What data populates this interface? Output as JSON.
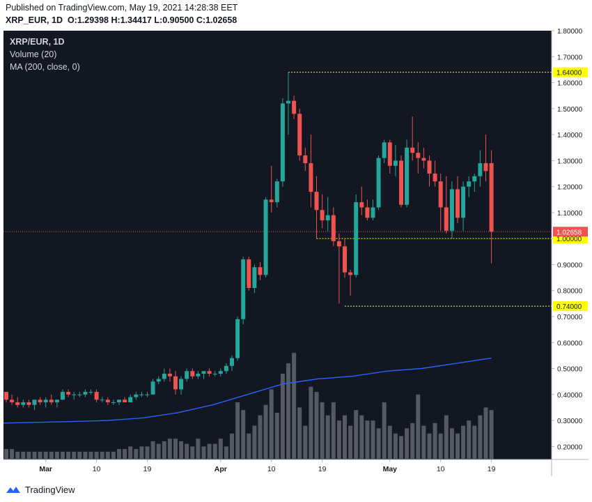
{
  "header": {
    "published": "Published on TradingView.com, May 19, 2021 14:28:38 EET",
    "symbol": "XRP_EUR, 1D",
    "o_label": "O:",
    "o_value": "1.29398",
    "h_label": "H:",
    "h_value": "1.34417",
    "l_label": "L:",
    "l_value": "0.90500",
    "c_label": "C:",
    "c_value": "1.02658"
  },
  "legend": {
    "symbol": "XRP/EUR, 1D",
    "volume": "Volume (20)",
    "ma": "MA (200, close, 0)"
  },
  "footer": {
    "brand": "TradingView"
  },
  "colors": {
    "background": "#131722",
    "up": "#26a69a",
    "down": "#ef5350",
    "volume": "#5d606b",
    "ma": "#2962ff",
    "level": "#ffff00",
    "last_price_line": "#ef5350"
  },
  "chart_data": {
    "type": "candlestick",
    "title": "XRP/EUR, 1D",
    "ylim": [
      0.15,
      1.8
    ],
    "y_ticks": [
      "1.80000",
      "1.70000",
      "1.60000",
      "1.50000",
      "1.40000",
      "1.30000",
      "1.20000",
      "1.10000",
      "1.00000",
      "0.90000",
      "0.80000",
      "0.70000",
      "0.60000",
      "0.50000",
      "0.40000",
      "0.30000",
      "0.20000"
    ],
    "x_ticks": [
      {
        "label": "Mar",
        "index": 7
      },
      {
        "label": "10",
        "index": 16
      },
      {
        "label": "19",
        "index": 25
      },
      {
        "label": "Apr",
        "index": 38
      },
      {
        "label": "10",
        "index": 47
      },
      {
        "label": "19",
        "index": 56
      },
      {
        "label": "May",
        "index": 68
      },
      {
        "label": "10",
        "index": 77
      },
      {
        "label": "19",
        "index": 86
      }
    ],
    "candles": [
      [
        0.41,
        0.41,
        0.37,
        0.38
      ],
      [
        0.38,
        0.4,
        0.36,
        0.37
      ],
      [
        0.37,
        0.39,
        0.35,
        0.36
      ],
      [
        0.36,
        0.38,
        0.35,
        0.37
      ],
      [
        0.37,
        0.38,
        0.35,
        0.36
      ],
      [
        0.36,
        0.38,
        0.34,
        0.38
      ],
      [
        0.38,
        0.39,
        0.36,
        0.37
      ],
      [
        0.37,
        0.39,
        0.35,
        0.38
      ],
      [
        0.38,
        0.4,
        0.36,
        0.37
      ],
      [
        0.37,
        0.38,
        0.35,
        0.38
      ],
      [
        0.38,
        0.42,
        0.38,
        0.41
      ],
      [
        0.41,
        0.42,
        0.39,
        0.4
      ],
      [
        0.4,
        0.41,
        0.38,
        0.4
      ],
      [
        0.4,
        0.41,
        0.39,
        0.4
      ],
      [
        0.4,
        0.42,
        0.39,
        0.41
      ],
      [
        0.41,
        0.42,
        0.4,
        0.41
      ],
      [
        0.41,
        0.42,
        0.37,
        0.38
      ],
      [
        0.38,
        0.39,
        0.37,
        0.38
      ],
      [
        0.38,
        0.39,
        0.36,
        0.37
      ],
      [
        0.37,
        0.38,
        0.36,
        0.37
      ],
      [
        0.37,
        0.38,
        0.36,
        0.38
      ],
      [
        0.38,
        0.39,
        0.37,
        0.37
      ],
      [
        0.37,
        0.4,
        0.37,
        0.39
      ],
      [
        0.39,
        0.41,
        0.38,
        0.4
      ],
      [
        0.4,
        0.41,
        0.39,
        0.4
      ],
      [
        0.4,
        0.41,
        0.39,
        0.4
      ],
      [
        0.4,
        0.46,
        0.4,
        0.45
      ],
      [
        0.45,
        0.47,
        0.44,
        0.46
      ],
      [
        0.46,
        0.5,
        0.45,
        0.48
      ],
      [
        0.48,
        0.5,
        0.45,
        0.47
      ],
      [
        0.47,
        0.49,
        0.4,
        0.42
      ],
      [
        0.42,
        0.47,
        0.4,
        0.46
      ],
      [
        0.46,
        0.5,
        0.45,
        0.49
      ],
      [
        0.49,
        0.5,
        0.46,
        0.47
      ],
      [
        0.47,
        0.49,
        0.46,
        0.48
      ],
      [
        0.48,
        0.49,
        0.46,
        0.49
      ],
      [
        0.49,
        0.5,
        0.47,
        0.48
      ],
      [
        0.48,
        0.49,
        0.47,
        0.48
      ],
      [
        0.48,
        0.5,
        0.47,
        0.49
      ],
      [
        0.49,
        0.52,
        0.48,
        0.51
      ],
      [
        0.51,
        0.55,
        0.49,
        0.54
      ],
      [
        0.54,
        0.7,
        0.53,
        0.69
      ],
      [
        0.69,
        0.93,
        0.67,
        0.92
      ],
      [
        0.92,
        0.93,
        0.8,
        0.81
      ],
      [
        0.81,
        0.9,
        0.79,
        0.89
      ],
      [
        0.89,
        0.91,
        0.84,
        0.86
      ],
      [
        0.86,
        1.16,
        0.85,
        1.15
      ],
      [
        1.15,
        1.28,
        1.1,
        1.14
      ],
      [
        1.14,
        1.23,
        1.12,
        1.22
      ],
      [
        1.22,
        1.54,
        1.2,
        1.52
      ],
      [
        1.52,
        1.64,
        1.4,
        1.53
      ],
      [
        1.53,
        1.55,
        1.46,
        1.48
      ],
      [
        1.48,
        1.5,
        1.3,
        1.32
      ],
      [
        1.32,
        1.35,
        1.26,
        1.29
      ],
      [
        1.29,
        1.4,
        1.12,
        1.18
      ],
      [
        1.18,
        1.24,
        1.0,
        1.11
      ],
      [
        1.11,
        1.17,
        1.04,
        1.07
      ],
      [
        1.07,
        1.16,
        1.03,
        1.09
      ],
      [
        1.09,
        1.12,
        0.97,
        0.99
      ],
      [
        0.99,
        1.02,
        0.75,
        0.97
      ],
      [
        0.97,
        1.0,
        0.85,
        0.87
      ],
      [
        0.87,
        0.88,
        0.78,
        0.86
      ],
      [
        0.86,
        1.17,
        0.85,
        1.14
      ],
      [
        1.14,
        1.2,
        1.09,
        1.12
      ],
      [
        1.12,
        1.15,
        1.07,
        1.08
      ],
      [
        1.08,
        1.15,
        1.07,
        1.12
      ],
      [
        1.12,
        1.32,
        1.11,
        1.31
      ],
      [
        1.31,
        1.38,
        1.29,
        1.37
      ],
      [
        1.37,
        1.38,
        1.25,
        1.28
      ],
      [
        1.28,
        1.36,
        1.24,
        1.3
      ],
      [
        1.3,
        1.32,
        1.12,
        1.13
      ],
      [
        1.13,
        1.38,
        1.12,
        1.35
      ],
      [
        1.35,
        1.47,
        1.3,
        1.33
      ],
      [
        1.33,
        1.37,
        1.25,
        1.31
      ],
      [
        1.31,
        1.35,
        1.27,
        1.3
      ],
      [
        1.3,
        1.32,
        1.2,
        1.25
      ],
      [
        1.25,
        1.3,
        1.2,
        1.22
      ],
      [
        1.22,
        1.25,
        1.03,
        1.12
      ],
      [
        1.12,
        1.24,
        1.02,
        1.03
      ],
      [
        1.03,
        1.22,
        1.0,
        1.19
      ],
      [
        1.19,
        1.24,
        1.06,
        1.08
      ],
      [
        1.08,
        1.22,
        1.03,
        1.2
      ],
      [
        1.2,
        1.24,
        1.16,
        1.22
      ],
      [
        1.22,
        1.25,
        1.18,
        1.24
      ],
      [
        1.24,
        1.34,
        1.2,
        1.29
      ],
      [
        1.29,
        1.4,
        1.22,
        1.26
      ],
      [
        1.29,
        1.34,
        0.905,
        1.02658
      ]
    ],
    "volumes": [
      0.19,
      0.19,
      0.18,
      0.18,
      0.18,
      0.18,
      0.18,
      0.18,
      0.18,
      0.18,
      0.18,
      0.18,
      0.18,
      0.18,
      0.18,
      0.18,
      0.18,
      0.18,
      0.18,
      0.18,
      0.19,
      0.19,
      0.2,
      0.19,
      0.2,
      0.2,
      0.22,
      0.21,
      0.22,
      0.23,
      0.23,
      0.22,
      0.21,
      0.2,
      0.23,
      0.2,
      0.21,
      0.21,
      0.23,
      0.2,
      0.25,
      0.37,
      0.34,
      0.25,
      0.28,
      0.32,
      0.36,
      0.42,
      0.33,
      0.48,
      0.52,
      0.56,
      0.35,
      0.28,
      0.43,
      0.41,
      0.37,
      0.32,
      0.37,
      0.3,
      0.32,
      0.28,
      0.34,
      0.32,
      0.3,
      0.3,
      0.27,
      0.37,
      0.28,
      0.25,
      0.24,
      0.27,
      0.29,
      0.4,
      0.28,
      0.25,
      0.29,
      0.25,
      0.32,
      0.27,
      0.25,
      0.28,
      0.3,
      0.28,
      0.32,
      0.35,
      0.34
    ],
    "ma200": [
      0.29,
      0.293,
      0.296,
      0.3,
      0.31,
      0.33,
      0.36,
      0.4,
      0.44,
      0.46,
      0.47,
      0.49,
      0.5,
      0.52,
      0.54
    ],
    "levels": [
      {
        "label": "1.64000",
        "value": 1.64
      },
      {
        "label": "1.00000",
        "value": 1.0
      },
      {
        "label": "0.74000",
        "value": 0.74
      }
    ],
    "last_price": {
      "label": "1.02658",
      "value": 1.02658
    }
  }
}
